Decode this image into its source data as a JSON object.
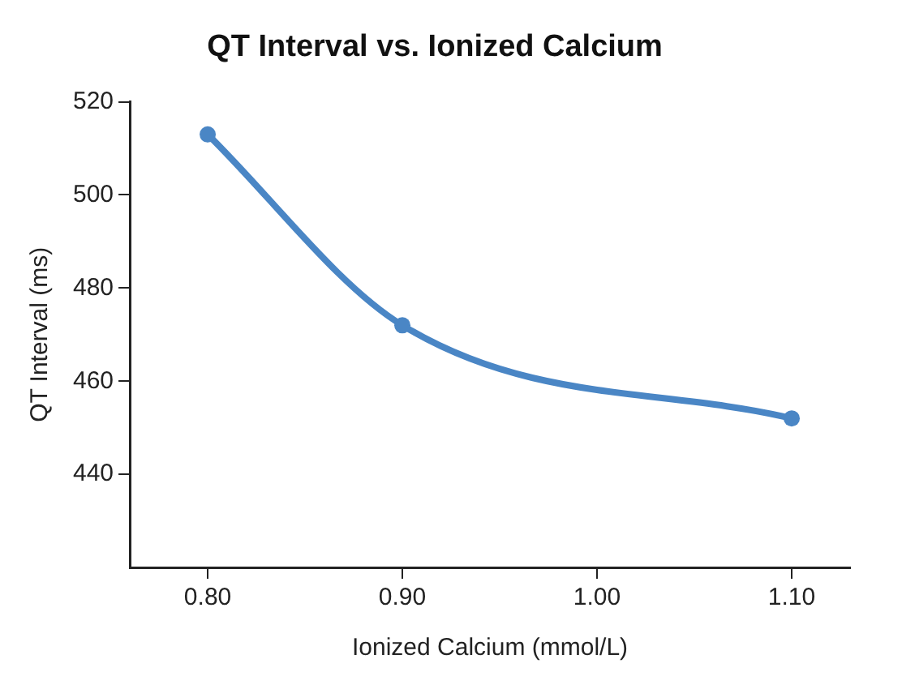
{
  "chart_data": {
    "type": "line",
    "title": "QT Interval vs. Ionized Calcium",
    "xlabel": "Ionized Calcium (mmol/L)",
    "ylabel": "QT Interval (ms)",
    "x": [
      0.8,
      0.9,
      1.1
    ],
    "series": [
      {
        "color": "#4a86c5",
        "values": [
          513,
          472,
          452
        ]
      }
    ],
    "xlim": [
      0.76,
      1.13
    ],
    "xticks": [
      {
        "value": 0.8,
        "label": "0.80"
      },
      {
        "value": 0.9,
        "label": "0.90"
      },
      {
        "value": 1.0,
        "label": "1.00"
      },
      {
        "value": 1.1,
        "label": "1.10"
      }
    ],
    "ylim": [
      420,
      520
    ],
    "yticks": [
      440,
      460,
      480,
      500,
      520
    ],
    "grid": false,
    "legend": false,
    "marker": "circle",
    "line_style": "solid"
  }
}
